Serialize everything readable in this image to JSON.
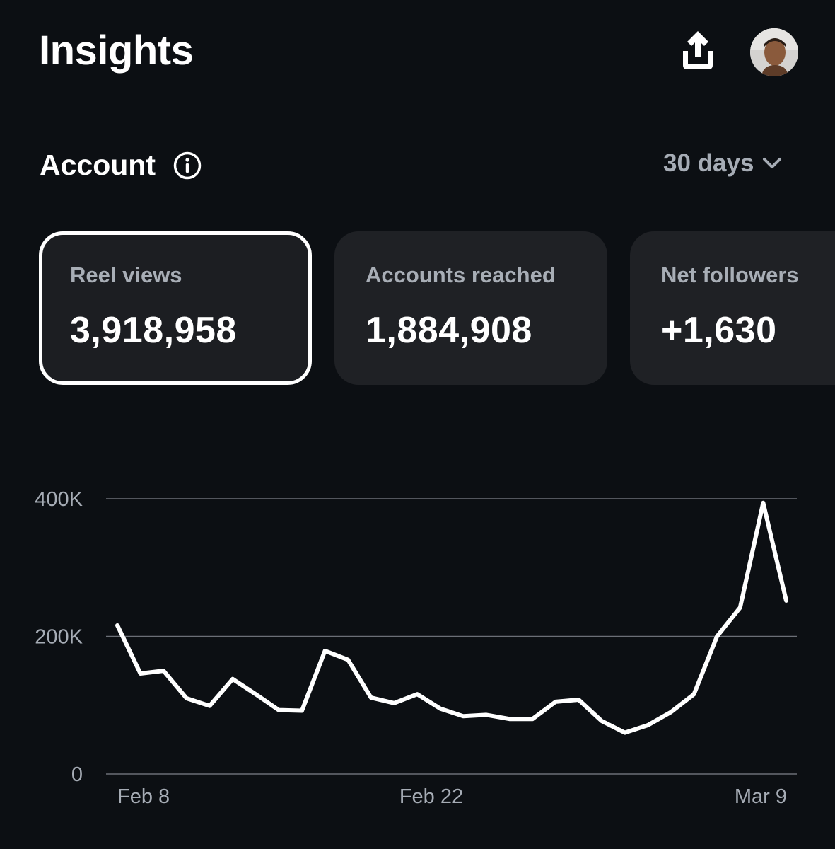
{
  "header": {
    "title": "Insights",
    "share_icon": "share-upload-icon",
    "avatar_icon": "profile-avatar"
  },
  "account": {
    "title": "Account",
    "info_icon": "info-icon",
    "range": "30 days",
    "range_icon": "chevron-down-icon"
  },
  "cards": [
    {
      "label": "Reel views",
      "value": "3,918,958",
      "selected": true
    },
    {
      "label": "Accounts reached",
      "value": "1,884,908",
      "selected": false
    },
    {
      "label": "Net followers",
      "value": "+1,630",
      "selected": false
    }
  ],
  "colors": {
    "background": "#0c0f13",
    "card": "#1f2125",
    "muted_text": "#a6acb5",
    "line": "#ffffff",
    "grid": "#6b6f76"
  },
  "chart_data": {
    "type": "line",
    "x_tick_labels": [
      "Feb 8",
      "Feb 22",
      "Mar 9"
    ],
    "y_tick_labels": [
      "0",
      "200K",
      "400K"
    ],
    "ylim": [
      0,
      400000
    ],
    "grid": true,
    "x": [
      "Feb 8",
      "Feb 9",
      "Feb 10",
      "Feb 11",
      "Feb 12",
      "Feb 13",
      "Feb 14",
      "Feb 15",
      "Feb 16",
      "Feb 17",
      "Feb 18",
      "Feb 19",
      "Feb 20",
      "Feb 21",
      "Feb 22",
      "Feb 23",
      "Feb 24",
      "Feb 25",
      "Feb 26",
      "Feb 27",
      "Feb 28",
      "Mar 1",
      "Mar 2",
      "Mar 3",
      "Mar 4",
      "Mar 5",
      "Mar 6",
      "Mar 7",
      "Mar 8",
      "Mar 9"
    ],
    "series": [
      {
        "values": [
          216000,
          146000,
          150000,
          110000,
          99000,
          138000,
          116000,
          93000,
          92000,
          179000,
          166000,
          111000,
          103000,
          116000,
          95000,
          84000,
          86000,
          80000,
          80000,
          105000,
          108000,
          77000,
          60000,
          71000,
          90000,
          116000,
          200000,
          242000,
          394000,
          252000
        ]
      }
    ]
  }
}
